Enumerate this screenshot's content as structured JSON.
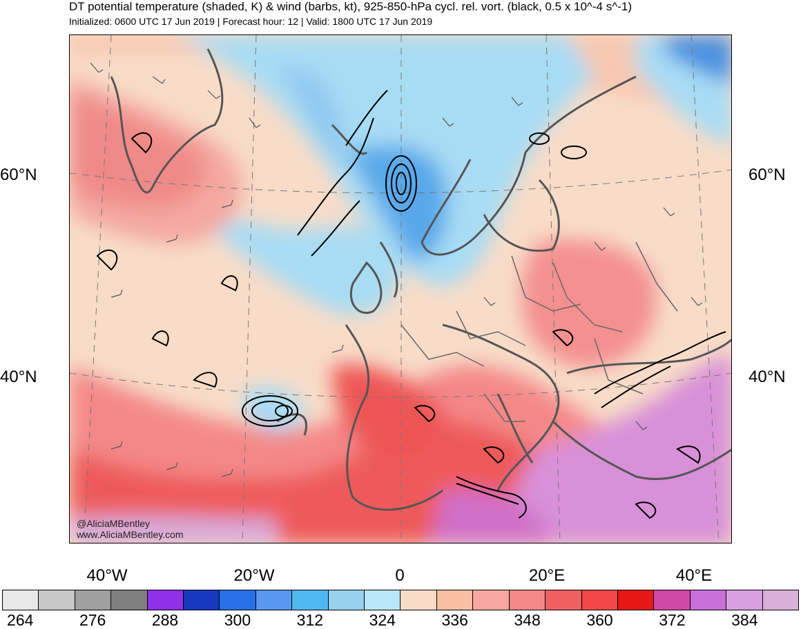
{
  "title": "DT potential temperature (shaded, K) & wind (barbs, kt), 925-850-hPa cycl. rel. vort. (black, 0.5 x 10^-4 s^-1)",
  "subtitle": "Initialized: 0600 UTC 17 Jun 2019 | Forecast hour: 12 | Valid: 1800 UTC 17 Jun 2019",
  "credits": [
    "@AliciaMBentley",
    "www.AliciaMBentley.com"
  ],
  "lat_labels": [
    "60°N",
    "40°N"
  ],
  "lon_labels": [
    "40°W",
    "20°W",
    "0",
    "20°E",
    "40°E"
  ],
  "colorbar": {
    "colors": [
      "#e8e8e8",
      "#c8c8c8",
      "#a0a0a0",
      "#808080",
      "#9030e8",
      "#1838c0",
      "#2870e8",
      "#5898f0",
      "#50b8f0",
      "#98d0f0",
      "#b8e8f8",
      "#f8dcc8",
      "#f8c0a0",
      "#f8a8a0",
      "#f48888",
      "#f06060",
      "#f04848",
      "#e81818",
      "#d048a8",
      "#c870d8",
      "#d8a0e0",
      "#d8b0d8"
    ],
    "labels": [
      "264",
      "276",
      "288",
      "300",
      "312",
      "324",
      "336",
      "348",
      "360",
      "372",
      "384"
    ]
  },
  "map": {
    "region": "Europe / North Atlantic",
    "field_colors": {
      "cold_core": "#5aa8e8",
      "cool": "#a8dcf4",
      "neutral": "#f8dcc8",
      "warm": "#f49898",
      "hot": "#ee5a5a",
      "very_hot": "#d080d0"
    }
  }
}
